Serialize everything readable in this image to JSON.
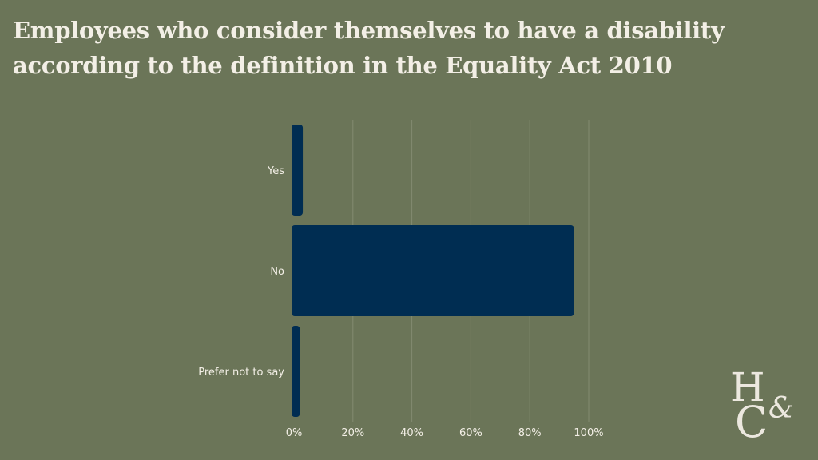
{
  "title_lines": [
    "Employees who consider themselves to have a disability",
    "according to the definition in the Equality Act 2010"
  ],
  "logo": {
    "top": "H",
    "amp": "&",
    "bottom": "C"
  },
  "colors": {
    "background": "#6b7558",
    "bar": "#002d52",
    "grid": "#838b71",
    "text": "#f3efe6"
  },
  "chart_data": {
    "type": "bar",
    "orientation": "horizontal",
    "title": "Employees who consider themselves to have a disability according to the definition in the Equality Act 2010",
    "categories": [
      "Yes",
      "No",
      "Prefer not to say"
    ],
    "values": [
      3,
      95,
      2
    ],
    "unit": "%",
    "xlim": [
      0,
      100
    ],
    "xticks": [
      "0%",
      "20%",
      "40%",
      "60%",
      "80%",
      "100%"
    ],
    "xlabel": "",
    "ylabel": "",
    "grid": true,
    "legend": "none"
  }
}
